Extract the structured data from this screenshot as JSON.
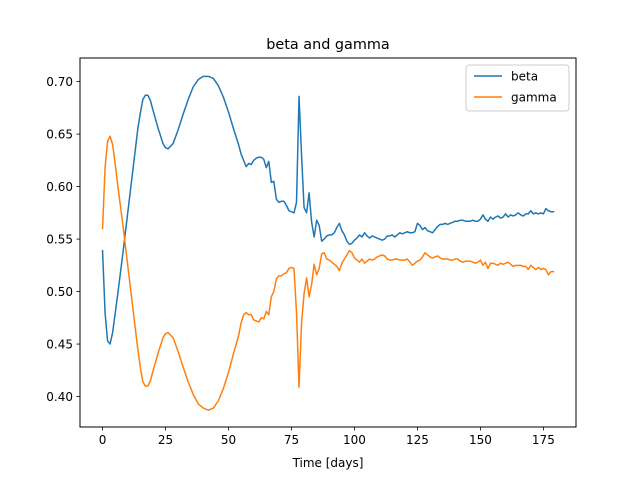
{
  "chart_data": {
    "type": "line",
    "title": "beta and gamma",
    "xlabel": "Time [days]",
    "ylabel": "",
    "xlim": [
      -8.95,
      187.95
    ],
    "ylim": [
      0.371,
      0.7225
    ],
    "xticks": [
      0,
      25,
      50,
      75,
      100,
      125,
      150,
      175
    ],
    "yticks": [
      0.4,
      0.45,
      0.5,
      0.55,
      0.6,
      0.65,
      0.7
    ],
    "ytick_labels": [
      "0.40",
      "0.45",
      "0.50",
      "0.55",
      "0.60",
      "0.65",
      "0.70"
    ],
    "grid": false,
    "legend_position": "top-right",
    "series": [
      {
        "name": "beta",
        "color": "#1f77b4",
        "points": [
          [
            0,
            0.539
          ],
          [
            1,
            0.48
          ],
          [
            2,
            0.453
          ],
          [
            3,
            0.45
          ],
          [
            4,
            0.461
          ],
          [
            5,
            0.479
          ],
          [
            6,
            0.497
          ],
          [
            8,
            0.535
          ],
          [
            10,
            0.575
          ],
          [
            12,
            0.615
          ],
          [
            14,
            0.655
          ],
          [
            15,
            0.67
          ],
          [
            16,
            0.683
          ],
          [
            17,
            0.687
          ],
          [
            18,
            0.687
          ],
          [
            19,
            0.682
          ],
          [
            20,
            0.673
          ],
          [
            22,
            0.656
          ],
          [
            24,
            0.641
          ],
          [
            25,
            0.637
          ],
          [
            26,
            0.636
          ],
          [
            28,
            0.641
          ],
          [
            30,
            0.654
          ],
          [
            32,
            0.669
          ],
          [
            34,
            0.683
          ],
          [
            36,
            0.695
          ],
          [
            38,
            0.702
          ],
          [
            40,
            0.705
          ],
          [
            42,
            0.705
          ],
          [
            44,
            0.703
          ],
          [
            46,
            0.696
          ],
          [
            48,
            0.685
          ],
          [
            50,
            0.671
          ],
          [
            52,
            0.655
          ],
          [
            54,
            0.64
          ],
          [
            55,
            0.631
          ],
          [
            56,
            0.625
          ],
          [
            57,
            0.619
          ],
          [
            58,
            0.622
          ],
          [
            59,
            0.621
          ],
          [
            60,
            0.625
          ],
          [
            61,
            0.627
          ],
          [
            62,
            0.628
          ],
          [
            63,
            0.628
          ],
          [
            64,
            0.626
          ],
          [
            65,
            0.618
          ],
          [
            66,
            0.624
          ],
          [
            67,
            0.604
          ],
          [
            68,
            0.605
          ],
          [
            69,
            0.588
          ],
          [
            70,
            0.585
          ],
          [
            71,
            0.586
          ],
          [
            72,
            0.586
          ],
          [
            73,
            0.582
          ],
          [
            74,
            0.577
          ],
          [
            75,
            0.576
          ],
          [
            76,
            0.575
          ],
          [
            77,
            0.585
          ],
          [
            78,
            0.686
          ],
          [
            79,
            0.63
          ],
          [
            80,
            0.58
          ],
          [
            81,
            0.575
          ],
          [
            82,
            0.594
          ],
          [
            83,
            0.566
          ],
          [
            84,
            0.552
          ],
          [
            85,
            0.568
          ],
          [
            86,
            0.563
          ],
          [
            87,
            0.548
          ],
          [
            88,
            0.55
          ],
          [
            89,
            0.553
          ],
          [
            90,
            0.554
          ],
          [
            91,
            0.554
          ],
          [
            92,
            0.556
          ],
          [
            93,
            0.561
          ],
          [
            94,
            0.565
          ],
          [
            95,
            0.558
          ],
          [
            96,
            0.554
          ],
          [
            97,
            0.548
          ],
          [
            98,
            0.545
          ],
          [
            99,
            0.546
          ],
          [
            100,
            0.549
          ],
          [
            101,
            0.551
          ],
          [
            102,
            0.554
          ],
          [
            103,
            0.552
          ],
          [
            104,
            0.556
          ],
          [
            105,
            0.553
          ],
          [
            106,
            0.551
          ],
          [
            107,
            0.553
          ],
          [
            108,
            0.552
          ],
          [
            109,
            0.551
          ],
          [
            110,
            0.55
          ],
          [
            111,
            0.549
          ],
          [
            112,
            0.55
          ],
          [
            113,
            0.553
          ],
          [
            114,
            0.553
          ],
          [
            115,
            0.554
          ],
          [
            116,
            0.552
          ],
          [
            117,
            0.554
          ],
          [
            118,
            0.556
          ],
          [
            119,
            0.555
          ],
          [
            120,
            0.556
          ],
          [
            121,
            0.557
          ],
          [
            122,
            0.556
          ],
          [
            123,
            0.556
          ],
          [
            124,
            0.557
          ],
          [
            125,
            0.565
          ],
          [
            126,
            0.563
          ],
          [
            127,
            0.559
          ],
          [
            128,
            0.561
          ],
          [
            129,
            0.558
          ],
          [
            130,
            0.557
          ],
          [
            131,
            0.556
          ],
          [
            132,
            0.559
          ],
          [
            133,
            0.562
          ],
          [
            134,
            0.564
          ],
          [
            135,
            0.564
          ],
          [
            136,
            0.565
          ],
          [
            137,
            0.564
          ],
          [
            138,
            0.565
          ],
          [
            139,
            0.566
          ],
          [
            140,
            0.567
          ],
          [
            141,
            0.567
          ],
          [
            142,
            0.568
          ],
          [
            143,
            0.568
          ],
          [
            144,
            0.567
          ],
          [
            145,
            0.567
          ],
          [
            146,
            0.567
          ],
          [
            147,
            0.568
          ],
          [
            148,
            0.567
          ],
          [
            149,
            0.567
          ],
          [
            150,
            0.569
          ],
          [
            151,
            0.573
          ],
          [
            152,
            0.569
          ],
          [
            153,
            0.567
          ],
          [
            154,
            0.571
          ],
          [
            155,
            0.569
          ],
          [
            156,
            0.571
          ],
          [
            157,
            0.572
          ],
          [
            158,
            0.57
          ],
          [
            159,
            0.571
          ],
          [
            160,
            0.574
          ],
          [
            161,
            0.571
          ],
          [
            162,
            0.573
          ],
          [
            163,
            0.572
          ],
          [
            164,
            0.573
          ],
          [
            165,
            0.575
          ],
          [
            166,
            0.573
          ],
          [
            167,
            0.572
          ],
          [
            168,
            0.574
          ],
          [
            169,
            0.574
          ],
          [
            170,
            0.577
          ],
          [
            171,
            0.574
          ],
          [
            172,
            0.575
          ],
          [
            173,
            0.574
          ],
          [
            174,
            0.575
          ],
          [
            175,
            0.574
          ],
          [
            176,
            0.579
          ],
          [
            177,
            0.577
          ],
          [
            178,
            0.576
          ],
          [
            179,
            0.576
          ]
        ]
      },
      {
        "name": "gamma",
        "color": "#ff7f0e",
        "points": [
          [
            0,
            0.56
          ],
          [
            1,
            0.618
          ],
          [
            2,
            0.643
          ],
          [
            3,
            0.648
          ],
          [
            4,
            0.64
          ],
          [
            5,
            0.622
          ],
          [
            6,
            0.602
          ],
          [
            8,
            0.565
          ],
          [
            10,
            0.525
          ],
          [
            12,
            0.485
          ],
          [
            14,
            0.445
          ],
          [
            15,
            0.428
          ],
          [
            16,
            0.414
          ],
          [
            17,
            0.41
          ],
          [
            18,
            0.41
          ],
          [
            19,
            0.415
          ],
          [
            20,
            0.424
          ],
          [
            22,
            0.441
          ],
          [
            24,
            0.456
          ],
          [
            25,
            0.46
          ],
          [
            26,
            0.461
          ],
          [
            28,
            0.456
          ],
          [
            30,
            0.443
          ],
          [
            32,
            0.428
          ],
          [
            34,
            0.414
          ],
          [
            36,
            0.402
          ],
          [
            38,
            0.393
          ],
          [
            40,
            0.389
          ],
          [
            42,
            0.387
          ],
          [
            44,
            0.389
          ],
          [
            46,
            0.396
          ],
          [
            48,
            0.408
          ],
          [
            50,
            0.423
          ],
          [
            52,
            0.441
          ],
          [
            54,
            0.458
          ],
          [
            55,
            0.47
          ],
          [
            56,
            0.478
          ],
          [
            57,
            0.48
          ],
          [
            58,
            0.478
          ],
          [
            59,
            0.478
          ],
          [
            60,
            0.473
          ],
          [
            61,
            0.472
          ],
          [
            62,
            0.471
          ],
          [
            63,
            0.475
          ],
          [
            64,
            0.474
          ],
          [
            65,
            0.481
          ],
          [
            66,
            0.478
          ],
          [
            67,
            0.495
          ],
          [
            68,
            0.5
          ],
          [
            69,
            0.512
          ],
          [
            70,
            0.515
          ],
          [
            71,
            0.515
          ],
          [
            72,
            0.517
          ],
          [
            73,
            0.518
          ],
          [
            74,
            0.522
          ],
          [
            75,
            0.523
          ],
          [
            76,
            0.522
          ],
          [
            77,
            0.48
          ],
          [
            78,
            0.409
          ],
          [
            79,
            0.47
          ],
          [
            80,
            0.498
          ],
          [
            81,
            0.513
          ],
          [
            82,
            0.495
          ],
          [
            83,
            0.507
          ],
          [
            84,
            0.526
          ],
          [
            85,
            0.516
          ],
          [
            86,
            0.522
          ],
          [
            87,
            0.536
          ],
          [
            88,
            0.537
          ],
          [
            89,
            0.531
          ],
          [
            90,
            0.53
          ],
          [
            91,
            0.528
          ],
          [
            92,
            0.526
          ],
          [
            93,
            0.524
          ],
          [
            94,
            0.52
          ],
          [
            95,
            0.527
          ],
          [
            96,
            0.531
          ],
          [
            97,
            0.535
          ],
          [
            98,
            0.539
          ],
          [
            99,
            0.537
          ],
          [
            100,
            0.532
          ],
          [
            101,
            0.53
          ],
          [
            102,
            0.528
          ],
          [
            103,
            0.531
          ],
          [
            104,
            0.527
          ],
          [
            105,
            0.529
          ],
          [
            106,
            0.531
          ],
          [
            107,
            0.53
          ],
          [
            108,
            0.531
          ],
          [
            109,
            0.533
          ],
          [
            110,
            0.534
          ],
          [
            111,
            0.535
          ],
          [
            112,
            0.534
          ],
          [
            113,
            0.531
          ],
          [
            114,
            0.53
          ],
          [
            115,
            0.53
          ],
          [
            116,
            0.531
          ],
          [
            117,
            0.531
          ],
          [
            118,
            0.53
          ],
          [
            119,
            0.53
          ],
          [
            120,
            0.53
          ],
          [
            121,
            0.531
          ],
          [
            122,
            0.528
          ],
          [
            123,
            0.525
          ],
          [
            124,
            0.527
          ],
          [
            125,
            0.529
          ],
          [
            126,
            0.53
          ],
          [
            127,
            0.533
          ],
          [
            128,
            0.537
          ],
          [
            129,
            0.535
          ],
          [
            130,
            0.533
          ],
          [
            131,
            0.532
          ],
          [
            132,
            0.533
          ],
          [
            133,
            0.534
          ],
          [
            134,
            0.532
          ],
          [
            135,
            0.531
          ],
          [
            136,
            0.531
          ],
          [
            137,
            0.531
          ],
          [
            138,
            0.53
          ],
          [
            139,
            0.53
          ],
          [
            140,
            0.531
          ],
          [
            141,
            0.531
          ],
          [
            142,
            0.529
          ],
          [
            143,
            0.528
          ],
          [
            144,
            0.529
          ],
          [
            145,
            0.529
          ],
          [
            146,
            0.529
          ],
          [
            147,
            0.528
          ],
          [
            148,
            0.527
          ],
          [
            149,
            0.528
          ],
          [
            150,
            0.53
          ],
          [
            151,
            0.525
          ],
          [
            152,
            0.528
          ],
          [
            153,
            0.522
          ],
          [
            154,
            0.527
          ],
          [
            155,
            0.527
          ],
          [
            156,
            0.526
          ],
          [
            157,
            0.525
          ],
          [
            158,
            0.527
          ],
          [
            159,
            0.526
          ],
          [
            160,
            0.527
          ],
          [
            161,
            0.528
          ],
          [
            162,
            0.526
          ],
          [
            163,
            0.524
          ],
          [
            164,
            0.525
          ],
          [
            165,
            0.525
          ],
          [
            166,
            0.525
          ],
          [
            167,
            0.524
          ],
          [
            168,
            0.524
          ],
          [
            169,
            0.521
          ],
          [
            170,
            0.525
          ],
          [
            171,
            0.523
          ],
          [
            172,
            0.521
          ],
          [
            173,
            0.523
          ],
          [
            174,
            0.521
          ],
          [
            175,
            0.522
          ],
          [
            176,
            0.521
          ],
          [
            177,
            0.516
          ],
          [
            178,
            0.519
          ],
          [
            179,
            0.519
          ]
        ]
      }
    ]
  }
}
